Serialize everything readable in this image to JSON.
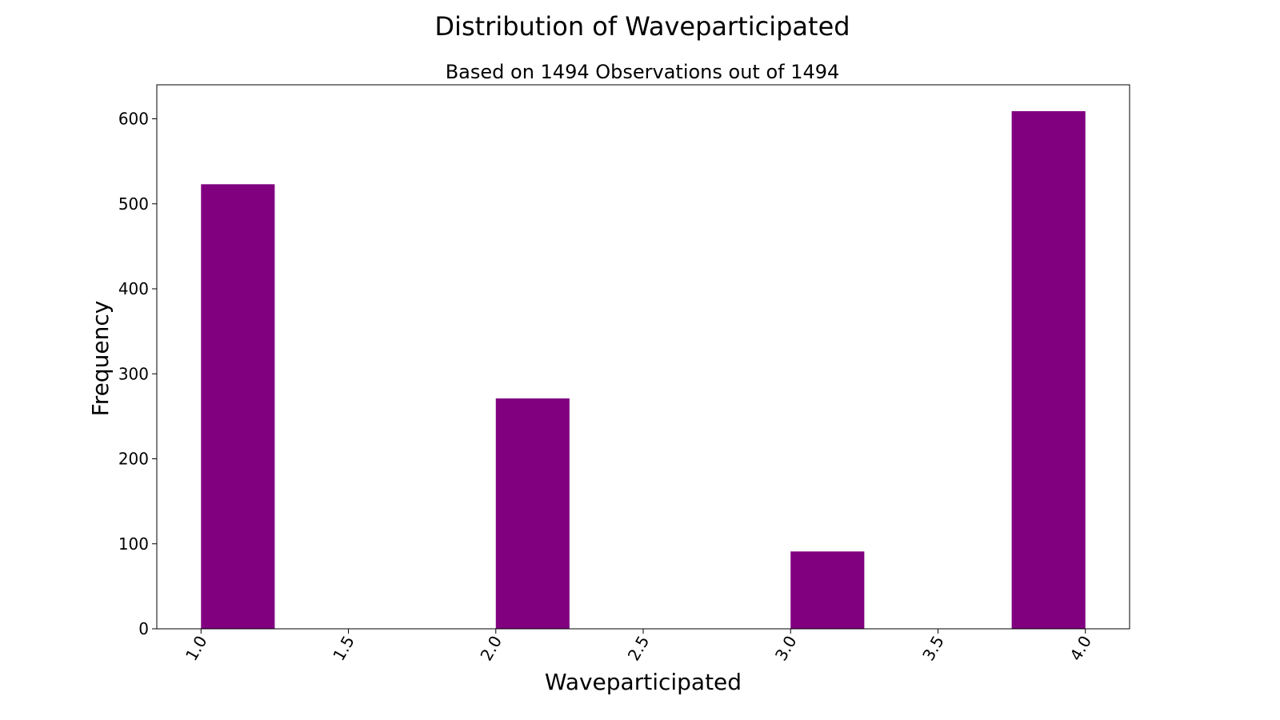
{
  "chart_data": {
    "type": "bar",
    "title": "Distribution of Waveparticipated",
    "subtitle": "Based on 1494 Observations out of 1494",
    "xlabel": "Waveparticipated",
    "ylabel": "Frequency",
    "bar_color": "#800080",
    "xlim": [
      0.85,
      4.15
    ],
    "ylim": [
      0,
      640
    ],
    "x_ticks": [
      "1.0",
      "1.5",
      "2.0",
      "2.5",
      "3.0",
      "3.5",
      "4.0"
    ],
    "y_ticks": [
      "0",
      "100",
      "200",
      "300",
      "400",
      "500",
      "600"
    ],
    "bins": [
      {
        "start": 1.0,
        "end": 1.25,
        "value": 523
      },
      {
        "start": 2.0,
        "end": 2.25,
        "value": 271
      },
      {
        "start": 3.0,
        "end": 3.25,
        "value": 91
      },
      {
        "start": 3.75,
        "end": 4.0,
        "value": 609
      }
    ],
    "grid": false,
    "legend": "none"
  }
}
